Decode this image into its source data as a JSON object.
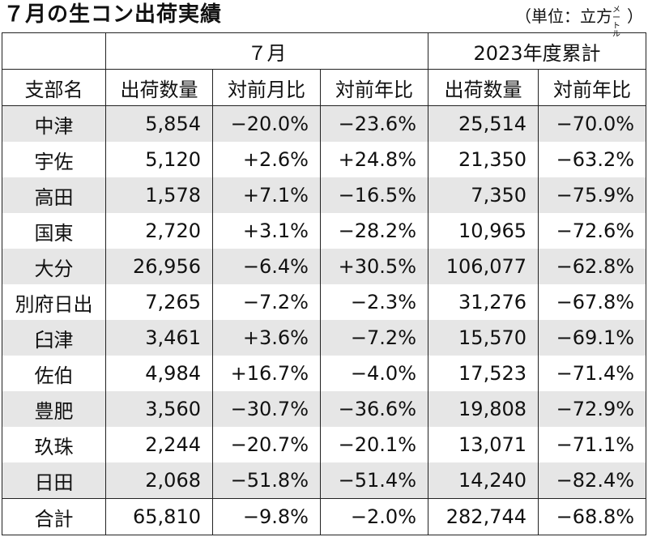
{
  "title": "７月の生コン出荷実績",
  "unit_prefix": "（単位：立方",
  "unit_small": "メートル",
  "unit_suffix": "）",
  "group_headers": {
    "month": "７月",
    "cumulative": "2023年度累計"
  },
  "columns": [
    "支部名",
    "出荷数量",
    "対前月比",
    "対前年比",
    "出荷数量",
    "対前年比"
  ],
  "rows": [
    {
      "name": "中津",
      "qty": "5,854",
      "mom": "−20.0%",
      "yoy": "−23.6%",
      "cum_qty": "25,514",
      "cum_yoy": "−70.0%"
    },
    {
      "name": "宇佐",
      "qty": "5,120",
      "mom": "+2.6%",
      "yoy": "+24.8%",
      "cum_qty": "21,350",
      "cum_yoy": "−63.2%"
    },
    {
      "name": "高田",
      "qty": "1,578",
      "mom": "+7.1%",
      "yoy": "−16.5%",
      "cum_qty": "7,350",
      "cum_yoy": "−75.9%"
    },
    {
      "name": "国東",
      "qty": "2,720",
      "mom": "+3.1%",
      "yoy": "−28.2%",
      "cum_qty": "10,965",
      "cum_yoy": "−72.6%"
    },
    {
      "name": "大分",
      "qty": "26,956",
      "mom": "−6.4%",
      "yoy": "+30.5%",
      "cum_qty": "106,077",
      "cum_yoy": "−62.8%"
    },
    {
      "name": "別府日出",
      "qty": "7,265",
      "mom": "−7.2%",
      "yoy": "−2.3%",
      "cum_qty": "31,276",
      "cum_yoy": "−67.8%"
    },
    {
      "name": "臼津",
      "qty": "3,461",
      "mom": "+3.6%",
      "yoy": "−7.2%",
      "cum_qty": "15,570",
      "cum_yoy": "−69.1%"
    },
    {
      "name": "佐伯",
      "qty": "4,984",
      "mom": "+16.7%",
      "yoy": "−4.0%",
      "cum_qty": "17,523",
      "cum_yoy": "−71.4%"
    },
    {
      "name": "豊肥",
      "qty": "3,560",
      "mom": "−30.7%",
      "yoy": "−36.6%",
      "cum_qty": "19,808",
      "cum_yoy": "−72.9%"
    },
    {
      "name": "玖珠",
      "qty": "2,244",
      "mom": "−20.7%",
      "yoy": "−20.1%",
      "cum_qty": "13,071",
      "cum_yoy": "−71.1%"
    },
    {
      "name": "日田",
      "qty": "2,068",
      "mom": "−51.8%",
      "yoy": "−51.4%",
      "cum_qty": "14,240",
      "cum_yoy": "−82.4%"
    }
  ],
  "total": {
    "name": "合計",
    "qty": "65,810",
    "mom": "−9.8%",
    "yoy": "−2.0%",
    "cum_qty": "282,744",
    "cum_yoy": "−68.8%"
  },
  "colors": {
    "shade": "#e6e6e6",
    "border": "#222222"
  }
}
